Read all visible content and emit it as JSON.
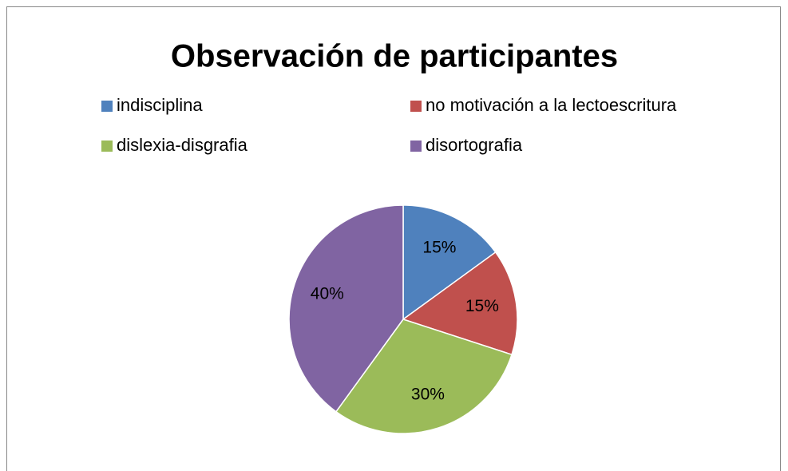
{
  "chart_data": {
    "type": "pie",
    "title": "Observación de participantes",
    "categories": [
      "indisciplina",
      "no motivación a la lectoescritura",
      "dislexia-disgrafia",
      "disortografia"
    ],
    "values": [
      15,
      15,
      30,
      40
    ],
    "value_labels": [
      "15%",
      "15%",
      "30%",
      "40%"
    ],
    "colors": [
      "#4f81bd",
      "#c0504d",
      "#9bbb59",
      "#8064a2"
    ],
    "legend": "top"
  }
}
